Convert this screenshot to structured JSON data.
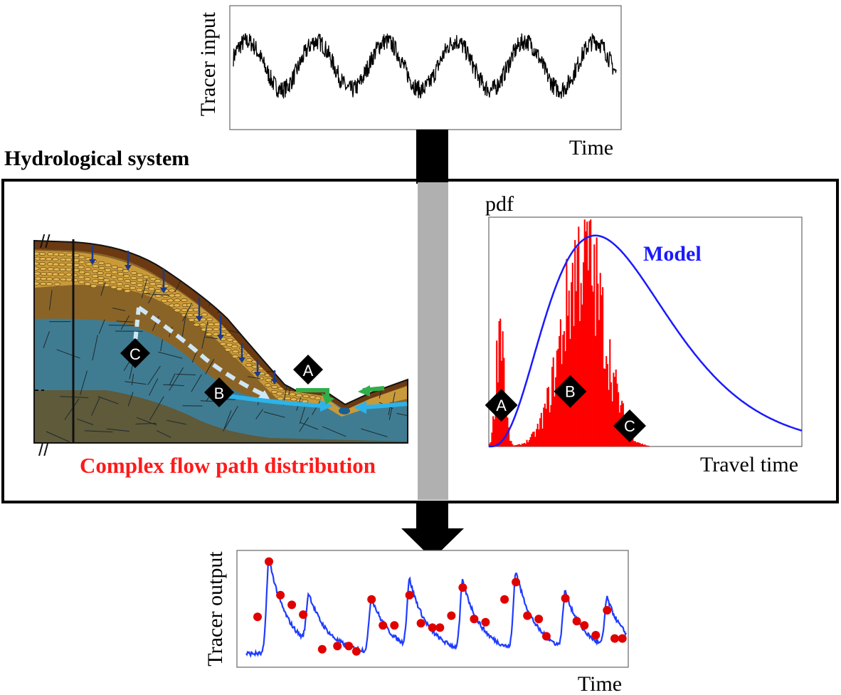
{
  "figure": {
    "input_panel": {
      "ylabel": "Tracer input",
      "xlabel": "Time"
    },
    "system": {
      "title": "Hydrological system",
      "hillslope_caption": "Complex flow path distribution",
      "path_markers": [
        "A",
        "B",
        "C"
      ]
    },
    "pdf_panel": {
      "ylabel": "pdf",
      "xlabel": "Travel time",
      "model_label": "Model",
      "markers": [
        "A",
        "B",
        "C"
      ]
    },
    "output_panel": {
      "ylabel": "Tracer output",
      "xlabel": "Time"
    }
  },
  "colors": {
    "hist": "#ff0000",
    "model": "#1a1aff",
    "obs": "#e00000",
    "sim": "#1f3cff",
    "arrow": "#000000",
    "conduit": "#b0b0b0",
    "deep": "#3f7c92",
    "bedrock": "#5e5a3a",
    "soil": "#8a6427",
    "topsoil": "#6b3a12",
    "sand": "#c99a3a",
    "flowpath": "#cfe6f5",
    "stream": "#2db3ea",
    "green": "#2fae4a"
  },
  "chart_data": [
    {
      "type": "line",
      "title": "",
      "xlabel": "Time",
      "ylabel": "Tracer input",
      "description_of_signal": "noisy sinusoid",
      "series": [
        {
          "name": "Tracer input",
          "periods": 5.5,
          "amplitude": 1.0,
          "noise": 0.6
        }
      ],
      "xlim": [
        0,
        1
      ],
      "ylim": [
        -1.8,
        1.8
      ]
    },
    {
      "type": "bar",
      "title": "",
      "xlabel": "Travel time",
      "ylabel": "pdf",
      "series": [
        {
          "name": "Observed distribution (histogram)",
          "kind": "histogram"
        },
        {
          "name": "Model",
          "kind": "line",
          "peak_at": 0.34,
          "peak_height": 0.92
        }
      ],
      "annotations": [
        {
          "label": "A",
          "x": 0.04,
          "y": 0.18
        },
        {
          "label": "B",
          "x": 0.26,
          "y": 0.24
        },
        {
          "label": "C",
          "x": 0.45,
          "y": 0.09
        }
      ],
      "xlim": [
        0,
        1
      ],
      "ylim": [
        0,
        1
      ]
    },
    {
      "type": "line",
      "title": "",
      "xlabel": "Time",
      "ylabel": "Tracer output",
      "series": [
        {
          "name": "Simulated",
          "kind": "line"
        },
        {
          "name": "Observed",
          "kind": "scatter",
          "points": [
            [
              0.03,
              0.42
            ],
            [
              0.06,
              0.93
            ],
            [
              0.09,
              0.62
            ],
            [
              0.12,
              0.53
            ],
            [
              0.15,
              0.44
            ],
            [
              0.2,
              0.12
            ],
            [
              0.24,
              0.15
            ],
            [
              0.27,
              0.15
            ],
            [
              0.29,
              0.1
            ],
            [
              0.33,
              0.58
            ],
            [
              0.36,
              0.34
            ],
            [
              0.39,
              0.34
            ],
            [
              0.43,
              0.62
            ],
            [
              0.46,
              0.36
            ],
            [
              0.49,
              0.32
            ],
            [
              0.51,
              0.32
            ],
            [
              0.54,
              0.43
            ],
            [
              0.57,
              0.69
            ],
            [
              0.6,
              0.4
            ],
            [
              0.63,
              0.37
            ],
            [
              0.68,
              0.58
            ],
            [
              0.71,
              0.74
            ],
            [
              0.74,
              0.43
            ],
            [
              0.77,
              0.4
            ],
            [
              0.79,
              0.24
            ],
            [
              0.84,
              0.59
            ],
            [
              0.87,
              0.38
            ],
            [
              0.89,
              0.34
            ],
            [
              0.92,
              0.25
            ],
            [
              0.95,
              0.48
            ],
            [
              0.97,
              0.22
            ],
            [
              0.99,
              0.22
            ]
          ]
        }
      ],
      "xlim": [
        0,
        1
      ],
      "ylim": [
        0,
        1
      ]
    }
  ]
}
